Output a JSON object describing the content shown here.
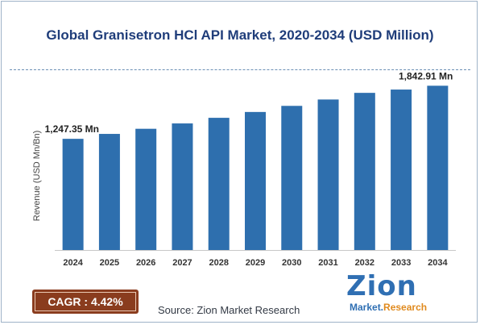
{
  "chart_data": {
    "type": "bar",
    "title": "Global Granisetron HCl API Market, 2020-2034 (USD Million)",
    "xlabel": "",
    "ylabel": "Revenue (USD Mn/Bn)",
    "categories": [
      "2024",
      "2025",
      "2026",
      "2027",
      "2028",
      "2029",
      "2030",
      "2031",
      "2032",
      "2033",
      "2034"
    ],
    "values": [
      1247.35,
      1302.5,
      1360.0,
      1420.0,
      1483.0,
      1548.5,
      1617.0,
      1688.5,
      1763.0,
      1800.0,
      1842.91
    ],
    "ylim": [
      0,
      1900
    ],
    "annotations": [
      {
        "category": "2024",
        "text": "1,247.35 Mn"
      },
      {
        "category": "2034",
        "text": "1,842.91 Mn"
      }
    ],
    "bar_color": "#2e6fae",
    "grid": false,
    "legend": "none"
  },
  "cagr_label": "CAGR : 4.42%",
  "source": "Source: Zion Market Research",
  "logo": {
    "name": "Zion",
    "sub_main": "Market.",
    "sub_accent": "Research"
  },
  "colors": {
    "title": "#1f3d7a",
    "cagr_bg": "#8a3c1e",
    "logo": "#2f6fb3",
    "logo_accent": "#e08a1e"
  }
}
